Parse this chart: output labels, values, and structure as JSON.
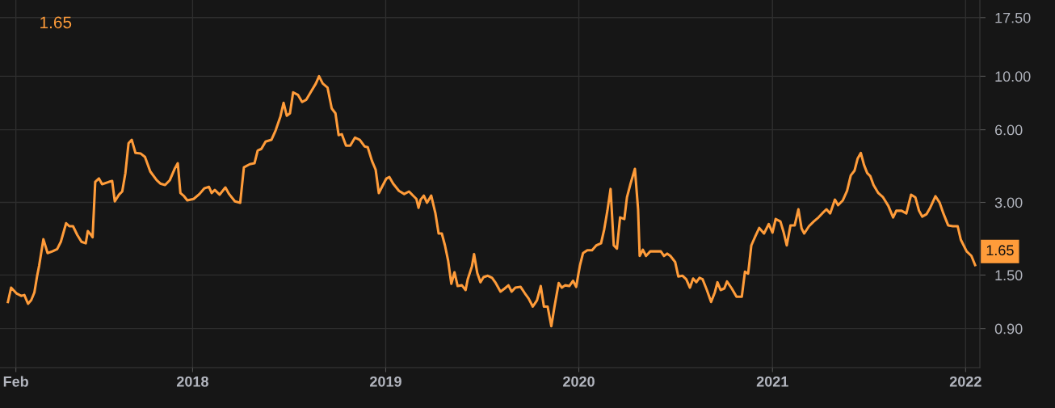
{
  "chart_data": {
    "type": "line",
    "x": [
      "2017-01-17",
      "2017-01-23",
      "2017-02-02",
      "2017-02-11",
      "2017-02-17",
      "2017-02-24",
      "2017-03-02",
      "2017-03-08",
      "2017-03-13",
      "2017-03-17",
      "2017-03-25",
      "2017-04-02",
      "2017-04-11",
      "2017-04-20",
      "2017-04-27",
      "2017-05-07",
      "2017-05-13",
      "2017-05-20",
      "2017-05-28",
      "2017-06-05",
      "2017-06-13",
      "2017-06-17",
      "2017-06-23",
      "2017-06-26",
      "2017-07-01",
      "2017-07-08",
      "2017-07-14",
      "2017-07-27",
      "2017-08-02",
      "2017-08-07",
      "2017-08-15",
      "2017-08-21",
      "2017-08-27",
      "2017-09-02",
      "2017-09-08",
      "2017-09-15",
      "2017-09-25",
      "2017-10-03",
      "2017-10-13",
      "2017-10-25",
      "2017-11-01",
      "2017-11-10",
      "2017-11-19",
      "2017-11-28",
      "2017-12-04",
      "2017-12-09",
      "2017-12-16",
      "2017-12-22",
      "2018-01-03",
      "2018-01-14",
      "2018-01-23",
      "2018-02-01",
      "2018-02-06",
      "2018-02-12",
      "2018-02-21",
      "2018-03-04",
      "2018-03-11",
      "2018-03-22",
      "2018-04-01",
      "2018-04-08",
      "2018-04-19",
      "2018-04-28",
      "2018-05-04",
      "2018-05-11",
      "2018-05-19",
      "2018-05-30",
      "2018-06-07",
      "2018-06-16",
      "2018-06-22",
      "2018-06-28",
      "2018-07-04",
      "2018-07-10",
      "2018-07-19",
      "2018-07-27",
      "2018-08-04",
      "2018-08-13",
      "2018-08-22",
      "2018-08-28",
      "2018-09-04",
      "2018-09-13",
      "2018-09-21",
      "2018-09-28",
      "2018-10-04",
      "2018-10-10",
      "2018-10-18",
      "2018-10-26",
      "2018-11-04",
      "2018-11-13",
      "2018-11-22",
      "2018-11-28",
      "2018-12-06",
      "2018-12-13",
      "2018-12-19",
      "2018-12-25",
      "2019-01-02",
      "2019-01-08",
      "2019-01-15",
      "2019-01-26",
      "2019-02-05",
      "2019-02-14",
      "2019-02-23",
      "2019-02-28",
      "2019-03-04",
      "2019-03-08",
      "2019-03-14",
      "2019-03-20",
      "2019-03-28",
      "2019-04-05",
      "2019-04-11",
      "2019-04-17",
      "2019-04-23",
      "2019-04-29",
      "2019-05-05",
      "2019-05-11",
      "2019-05-17",
      "2019-05-25",
      "2019-06-01",
      "2019-06-05",
      "2019-06-13",
      "2019-06-17",
      "2019-06-23",
      "2019-06-29",
      "2019-07-05",
      "2019-07-13",
      "2019-07-21",
      "2019-07-27",
      "2019-08-06",
      "2019-08-14",
      "2019-08-21",
      "2019-08-27",
      "2019-09-03",
      "2019-09-13",
      "2019-09-21",
      "2019-09-28",
      "2019-10-06",
      "2019-10-14",
      "2019-10-21",
      "2019-10-27",
      "2019-11-03",
      "2019-11-10",
      "2019-11-16",
      "2019-11-24",
      "2019-11-30",
      "2019-12-06",
      "2019-12-14",
      "2019-12-21",
      "2019-12-27",
      "2020-01-03",
      "2020-01-09",
      "2020-01-17",
      "2020-01-26",
      "2020-02-03",
      "2020-02-12",
      "2020-02-18",
      "2020-02-24",
      "2020-03-01",
      "2020-03-07",
      "2020-03-13",
      "2020-03-19",
      "2020-03-27",
      "2020-04-01",
      "2020-04-07",
      "2020-04-16",
      "2020-04-22",
      "2020-04-25",
      "2020-05-01",
      "2020-05-07",
      "2020-05-15",
      "2020-05-25",
      "2020-06-04",
      "2020-06-10",
      "2020-06-16",
      "2020-06-22",
      "2020-07-01",
      "2020-07-07",
      "2020-07-15",
      "2020-07-22",
      "2020-07-29",
      "2020-08-04",
      "2020-08-10",
      "2020-08-16",
      "2020-08-22",
      "2020-08-30",
      "2020-09-07",
      "2020-09-14",
      "2020-09-19",
      "2020-09-25",
      "2020-10-02",
      "2020-10-07",
      "2020-10-16",
      "2020-10-25",
      "2020-11-04",
      "2020-11-10",
      "2020-11-16",
      "2020-11-22",
      "2020-11-30",
      "2020-12-07",
      "2020-12-16",
      "2020-12-25",
      "2021-01-01",
      "2021-01-07",
      "2021-01-16",
      "2021-01-22",
      "2021-01-28",
      "2021-02-04",
      "2021-02-12",
      "2021-02-19",
      "2021-02-25",
      "2021-03-02",
      "2021-03-11",
      "2021-03-20",
      "2021-03-29",
      "2021-04-05",
      "2021-04-13",
      "2021-04-20",
      "2021-04-29",
      "2021-05-05",
      "2021-05-14",
      "2021-05-22",
      "2021-05-29",
      "2021-06-05",
      "2021-06-11",
      "2021-06-17",
      "2021-06-23",
      "2021-06-29",
      "2021-07-05",
      "2021-07-11",
      "2021-07-20",
      "2021-07-29",
      "2021-08-08",
      "2021-08-17",
      "2021-08-23",
      "2021-09-02",
      "2021-09-11",
      "2021-09-20",
      "2021-09-28",
      "2021-10-05",
      "2021-10-11",
      "2021-10-19",
      "2021-10-26",
      "2021-11-05",
      "2021-11-13",
      "2021-11-20",
      "2021-11-29",
      "2021-12-08",
      "2021-12-17",
      "2021-12-23",
      "2022-01-03",
      "2022-01-12",
      "2022-01-19"
    ],
    "series": [
      {
        "color": "#ff9c3a",
        "values": [
          1.16,
          1.33,
          1.26,
          1.23,
          1.24,
          1.14,
          1.18,
          1.27,
          1.48,
          1.64,
          2.11,
          1.85,
          1.88,
          1.92,
          2.06,
          2.46,
          2.39,
          2.39,
          2.2,
          2.06,
          2.03,
          2.28,
          2.2,
          2.15,
          3.65,
          3.77,
          3.57,
          3.65,
          3.68,
          3.03,
          3.23,
          3.33,
          3.97,
          5.28,
          5.45,
          4.81,
          4.78,
          4.63,
          4.03,
          3.71,
          3.59,
          3.54,
          3.71,
          4.13,
          4.36,
          3.28,
          3.18,
          3.06,
          3.1,
          3.25,
          3.43,
          3.48,
          3.28,
          3.38,
          3.23,
          3.46,
          3.25,
          3.03,
          2.99,
          4.19,
          4.32,
          4.36,
          4.92,
          5.0,
          5.36,
          5.45,
          5.97,
          6.81,
          7.76,
          6.86,
          7.02,
          8.57,
          8.38,
          7.82,
          8.0,
          8.64,
          9.33,
          10.0,
          9.33,
          8.98,
          7.35,
          7.02,
          5.7,
          5.75,
          5.16,
          5.16,
          5.57,
          5.45,
          5.12,
          5.08,
          4.46,
          4.1,
          3.28,
          3.48,
          3.76,
          3.82,
          3.59,
          3.35,
          3.25,
          3.33,
          3.18,
          3.1,
          2.85,
          3.08,
          3.2,
          2.99,
          3.2,
          2.7,
          2.23,
          2.23,
          1.99,
          1.72,
          1.38,
          1.54,
          1.35,
          1.36,
          1.3,
          1.44,
          1.63,
          1.83,
          1.53,
          1.4,
          1.47,
          1.49,
          1.46,
          1.4,
          1.28,
          1.32,
          1.36,
          1.28,
          1.33,
          1.34,
          1.26,
          1.2,
          1.11,
          1.18,
          1.35,
          1.11,
          1.11,
          0.92,
          1.11,
          1.39,
          1.33,
          1.36,
          1.35,
          1.42,
          1.34,
          1.64,
          1.85,
          1.9,
          1.9,
          1.99,
          2.03,
          2.32,
          2.77,
          3.41,
          1.99,
          1.93,
          2.6,
          2.56,
          3.15,
          3.54,
          4.13,
          2.81,
          1.8,
          1.91,
          1.8,
          1.88,
          1.88,
          1.88,
          1.8,
          1.84,
          1.8,
          1.7,
          1.48,
          1.49,
          1.44,
          1.33,
          1.45,
          1.4,
          1.46,
          1.44,
          1.3,
          1.16,
          1.27,
          1.4,
          1.3,
          1.32,
          1.41,
          1.32,
          1.22,
          1.22,
          1.55,
          1.52,
          1.99,
          2.18,
          2.35,
          2.23,
          2.44,
          2.25,
          2.56,
          2.5,
          2.26,
          1.99,
          2.41,
          2.41,
          2.81,
          2.34,
          2.23,
          2.39,
          2.5,
          2.6,
          2.7,
          2.81,
          2.7,
          3.08,
          2.92,
          3.06,
          3.35,
          3.88,
          4.06,
          4.56,
          4.81,
          4.29,
          3.97,
          3.85,
          3.54,
          3.28,
          3.15,
          2.9,
          2.6,
          2.77,
          2.77,
          2.7,
          3.23,
          3.15,
          2.77,
          2.62,
          2.68,
          2.85,
          3.18,
          2.99,
          2.7,
          2.41,
          2.39,
          2.39,
          2.1,
          1.88,
          1.8,
          1.65
        ]
      }
    ],
    "log": true,
    "ylim": [
      0.62,
      20.7
    ],
    "yticks": [
      {
        "value": 0.9,
        "label": "0.90"
      },
      {
        "value": 1.5,
        "label": "1.50"
      },
      {
        "value": 3,
        "label": "3.00"
      },
      {
        "value": 6,
        "label": "6.00"
      },
      {
        "value": 10,
        "label": "10.00"
      },
      {
        "value": 17.5,
        "label": "17.50"
      }
    ],
    "xlim": [
      "2017-01-02",
      "2022-01-28"
    ],
    "xticks": [
      {
        "value": "2017-02-01",
        "label": "Feb"
      },
      {
        "value": "2018-01-01",
        "label": "2018"
      },
      {
        "value": "2019-01-01",
        "label": "2019"
      },
      {
        "value": "2020-01-01",
        "label": "2020"
      },
      {
        "value": "2021-01-01",
        "label": "2021"
      },
      {
        "value": "2022-01-01",
        "label": "2022"
      }
    ],
    "grid": true,
    "marker": "none",
    "line_style": "solid",
    "annotations": [
      "1.65",
      {
        "text": "1.65",
        "x": "2022-01-19",
        "y": 1.65
      }
    ]
  }
}
